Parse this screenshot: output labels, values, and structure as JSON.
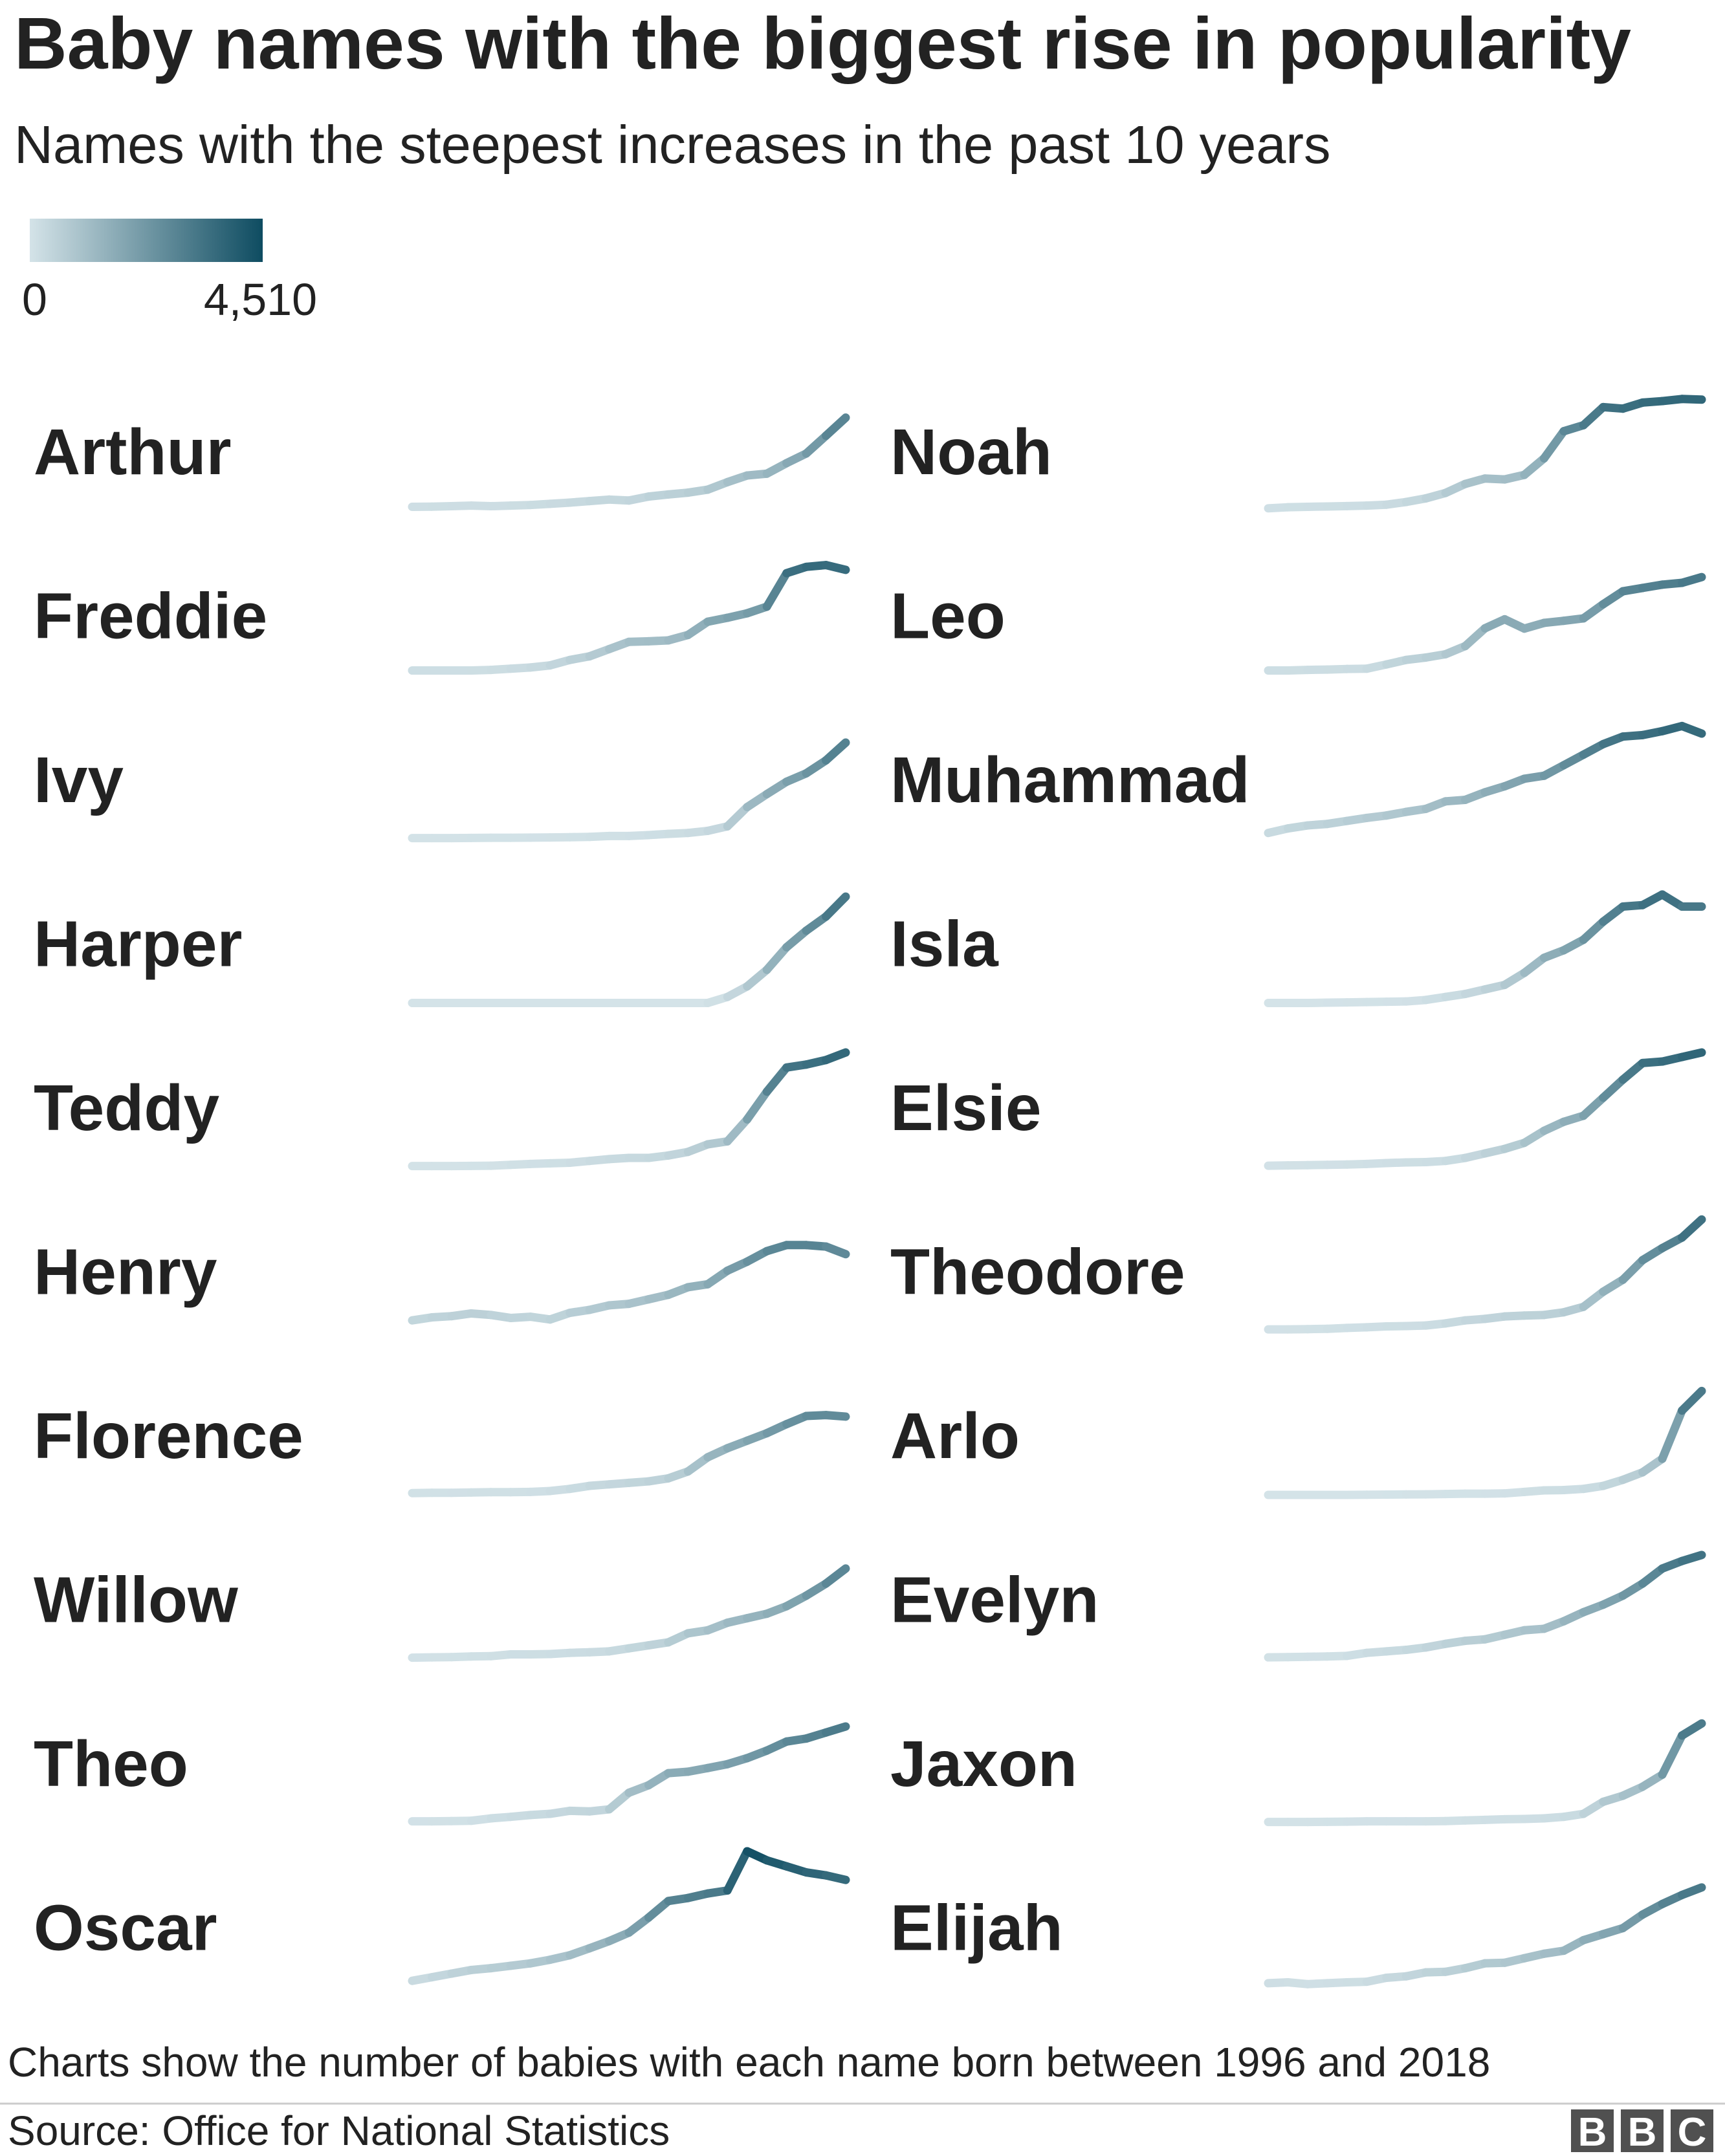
{
  "chart_data": {
    "type": "line",
    "title": "Baby names with the biggest rise in popularity",
    "subtitle": "Names with the steepest increases in the past 10 years",
    "x": [
      1996,
      1997,
      1998,
      1999,
      2000,
      2001,
      2002,
      2003,
      2004,
      2005,
      2006,
      2007,
      2008,
      2009,
      2010,
      2011,
      2012,
      2013,
      2014,
      2015,
      2016,
      2017,
      2018
    ],
    "ylim": [
      0,
      4510
    ],
    "color_scale": {
      "min_label": "0",
      "max_label": "4,510",
      "min": 0,
      "max": 4510,
      "low_color": "#d4e3e8",
      "high_color": "#0e4c61"
    },
    "footnote": "Charts show the number of babies with each name born between 1996 and 2018",
    "source": "Source: Office for National Statistics",
    "logo": "BBC",
    "series": [
      {
        "name": "Arthur",
        "values": [
          140,
          145,
          160,
          180,
          160,
          180,
          200,
          240,
          280,
          330,
          380,
          350,
          480,
          550,
          610,
          710,
          960,
          1180,
          1240,
          1590,
          1910,
          2500,
          3100
        ]
      },
      {
        "name": "Noah",
        "values": [
          90,
          125,
          140,
          150,
          165,
          180,
          210,
          300,
          420,
          600,
          900,
          1080,
          1050,
          1200,
          1750,
          2650,
          2850,
          3450,
          3400,
          3600,
          3650,
          3720,
          3700
        ]
      },
      {
        "name": "Freddie",
        "values": [
          150,
          150,
          150,
          150,
          170,
          210,
          250,
          320,
          500,
          620,
          860,
          1100,
          1120,
          1150,
          1330,
          1770,
          1900,
          2050,
          2270,
          3380,
          3590,
          3650,
          3490
        ]
      },
      {
        "name": "Leo",
        "values": [
          150,
          150,
          170,
          180,
          200,
          210,
          350,
          500,
          580,
          690,
          960,
          1550,
          1850,
          1540,
          1730,
          1800,
          1880,
          2350,
          2780,
          2890,
          3000,
          3060,
          3250
        ]
      },
      {
        "name": "Ivy",
        "values": [
          30,
          30,
          30,
          35,
          40,
          40,
          45,
          50,
          60,
          70,
          100,
          100,
          130,
          170,
          200,
          270,
          420,
          1060,
          1490,
          1900,
          2180,
          2610,
          3200
        ]
      },
      {
        "name": "Muhammad",
        "values": [
          200,
          350,
          450,
          500,
          600,
          700,
          780,
          900,
          1000,
          1250,
          1300,
          1550,
          1750,
          2000,
          2100,
          2450,
          2800,
          3150,
          3400,
          3450,
          3580,
          3750,
          3500
        ]
      },
      {
        "name": "Harper",
        "values": [
          0,
          0,
          0,
          0,
          0,
          0,
          0,
          0,
          0,
          0,
          0,
          0,
          0,
          0,
          0,
          0,
          200,
          550,
          1100,
          1850,
          2400,
          2870,
          3530
        ]
      },
      {
        "name": "Isla",
        "values": [
          0,
          0,
          0,
          10,
          20,
          30,
          40,
          50,
          100,
          200,
          300,
          450,
          600,
          1000,
          1500,
          1750,
          2100,
          2700,
          3200,
          3250,
          3600,
          3200,
          3200
        ]
      },
      {
        "name": "Teddy",
        "values": [
          30,
          30,
          30,
          35,
          40,
          70,
          100,
          120,
          140,
          200,
          260,
          300,
          300,
          380,
          500,
          750,
          850,
          1580,
          2500,
          3300,
          3400,
          3550,
          3800
        ]
      },
      {
        "name": "Elsie",
        "values": [
          40,
          50,
          60,
          70,
          80,
          100,
          130,
          150,
          160,
          200,
          300,
          450,
          600,
          800,
          1200,
          1500,
          1700,
          2300,
          2900,
          3450,
          3500,
          3650,
          3800
        ]
      },
      {
        "name": "Henry",
        "values": [
          350,
          450,
          490,
          580,
          530,
          430,
          470,
          380,
          600,
          700,
          850,
          900,
          1050,
          1200,
          1450,
          1550,
          2000,
          2300,
          2650,
          2850,
          2850,
          2800,
          2550
        ]
      },
      {
        "name": "Theodore",
        "values": [
          50,
          50,
          60,
          70,
          100,
          120,
          150,
          160,
          180,
          250,
          350,
          400,
          480,
          510,
          530,
          620,
          800,
          1300,
          1700,
          2350,
          2750,
          3100,
          3700
        ]
      },
      {
        "name": "Florence",
        "values": [
          60,
          70,
          70,
          80,
          90,
          90,
          100,
          130,
          200,
          300,
          350,
          400,
          450,
          550,
          780,
          1250,
          1550,
          1800,
          2050,
          2350,
          2620,
          2650,
          2600
        ]
      },
      {
        "name": "Arlo",
        "values": [
          0,
          0,
          0,
          0,
          0,
          5,
          10,
          15,
          20,
          30,
          40,
          40,
          50,
          100,
          150,
          160,
          200,
          300,
          500,
          750,
          1200,
          2800,
          3450
        ]
      },
      {
        "name": "Willow",
        "values": [
          40,
          50,
          60,
          80,
          90,
          150,
          150,
          160,
          200,
          220,
          250,
          350,
          450,
          550,
          850,
          950,
          1200,
          1350,
          1500,
          1750,
          2100,
          2500,
          3000
        ]
      },
      {
        "name": "Evelyn",
        "values": [
          50,
          60,
          70,
          80,
          100,
          200,
          250,
          300,
          380,
          500,
          600,
          650,
          800,
          950,
          1000,
          1250,
          1550,
          1800,
          2100,
          2500,
          3000,
          3250,
          3450
        ]
      },
      {
        "name": "Theo",
        "values": [
          50,
          50,
          60,
          70,
          150,
          200,
          260,
          300,
          400,
          380,
          450,
          1000,
          1250,
          1650,
          1700,
          1820,
          1950,
          2150,
          2400,
          2700,
          2800,
          3000,
          3200
        ]
      },
      {
        "name": "Jaxon",
        "values": [
          30,
          30,
          30,
          35,
          40,
          50,
          50,
          50,
          50,
          60,
          80,
          100,
          120,
          130,
          150,
          200,
          300,
          700,
          900,
          1200,
          1600,
          2900,
          3300
        ]
      },
      {
        "name": "Oscar",
        "values": [
          200,
          320,
          440,
          560,
          620,
          700,
          780,
          900,
          1050,
          1280,
          1520,
          1800,
          2300,
          2850,
          2950,
          3100,
          3200,
          4500,
          4200,
          4000,
          3800,
          3700,
          3550
        ]
      },
      {
        "name": "Elijah",
        "values": [
          120,
          150,
          90,
          120,
          150,
          170,
          300,
          350,
          480,
          500,
          620,
          780,
          800,
          950,
          1100,
          1200,
          1550,
          1750,
          1950,
          2400,
          2750,
          3050,
          3300
        ]
      }
    ]
  }
}
